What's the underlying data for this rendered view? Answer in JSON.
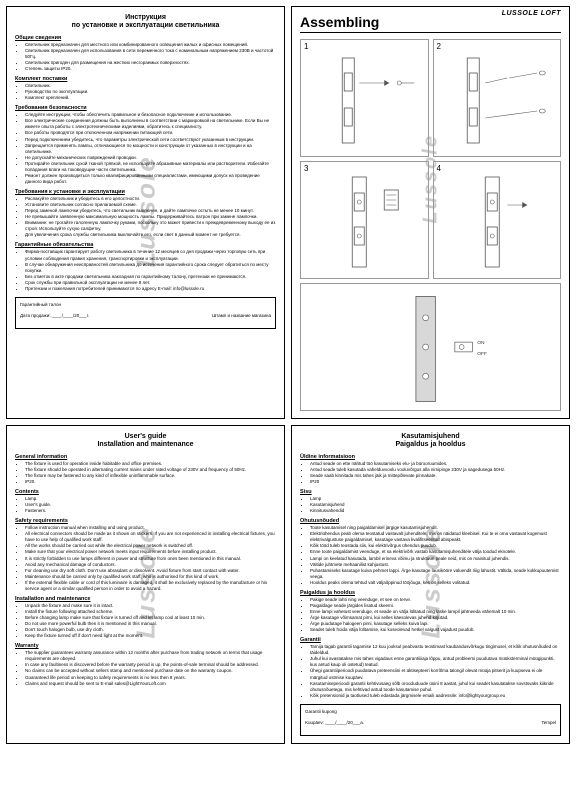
{
  "colors": {
    "border": "#000",
    "watermark": "#ccc",
    "text": "#000",
    "bg": "#fff"
  },
  "page1": {
    "title_l1": "Инструкция",
    "title_l2": "по установке и эксплуатации светильника",
    "s1_h": "Общие сведения",
    "s1_items": [
      "Светильник предназначен для местного или комбинированного освещения жилых и офисных помещений.",
      "Светильник предназначен для использования в сети переменного тока с номинальным напряжением 230В и частотой 50Гц.",
      "Светильник пригоден для размещения на жестких несгораемых поверхностях.",
      "Степень защиты IP20."
    ],
    "s2_h": "Комплект поставки",
    "s2_items": [
      "Светильник.",
      "Руководство по эксплуатации.",
      "Комплект креплений."
    ],
    "s3_h": "Требования безопасности",
    "s3_items": [
      "Следуйте инструкции, чтобы обеспечить правильное и безопасное подключение и использование.",
      "Все электрические соединения должны быть выполнены в соответствии с маркировкой на светильнике. Если Вы не имеете опыта работы с электротехническими изделиями, обратитесь к специалисту.",
      "Все работы проводятся при отключенном напряжении питающей сети.",
      "Перед подключением убедитесь, что параметры электрической сети соответствуют указанным в инструкции.",
      "Запрещается применять лампы, отличающиеся по мощности и конструкции от указанных в инструкции и на светильнике.",
      "Не допускайте механических повреждений проводки.",
      "Протирайте светильник сухой тканой тряпкой, не используйте абразивные материалы или растворители. Избегайте попадания влаги на токоведущие части светильника.",
      "Ремонт должен производиться только квалифицированными специалистами, имеющими допуск на проведение данного вида работ."
    ],
    "s4_h": "Требования к установке и эксплуатации",
    "s4_items": [
      "Распакуйте светильник и убедитесь в его целостности.",
      "Установите светильник согласно прилагаемой схеме.",
      "Перед заменой лампочки убедитесь, что светильник выключен, и дайте лампочке остыть не менее 10 минут.",
      "Не превышайте заявленную максимальную мощность лампы. Придерживайтесь патрон при замене лампочки.",
      "Внимание: не трогайте галогенную лампочку руками, поскольку это может привести к преждевременному выходу ее из строя. Используйте сухую салфетку.",
      "Для увеличения срока службы светильника выключайте его, если свет в данный момент не требуется."
    ],
    "s5_h": "Гарантийные обязательства",
    "s5_items": [
      "Фирма-поставщик гарантирует работу светильника в течение 12 месяцев со дня продажи через торговую сеть при условии соблюдения правил хранения, транспортировки и эксплуатации.",
      "В случае обнаружения неисправностей светильника до истечения гарантийного срока следует обратиться по месту покупки.",
      "Без отметок в акте продажи светильника накладная по гарантийному талону, претензии не принимаются.",
      "Срок службы при правильной эксплуатации не менее 8 лет.",
      "Претензии и пожелания потребителей принимаются по адресу E-mail: info@lussole.ru"
    ],
    "warranty_label": "Гарантийный талон",
    "date_label": "Дата продажи: ____/____/20___г.",
    "stamp_label": "Штамп и название магазина"
  },
  "page2": {
    "title": "Assembling",
    "brand": "LUSSOLE LOFT",
    "nums": [
      "1",
      "2",
      "3",
      "4"
    ]
  },
  "page3": {
    "title_l1": "User's guide",
    "title_l2": "Installation and maintenance",
    "s1_h": "General information",
    "s1_items": [
      "The fixture is used for operation inside habitable and office premises.",
      "The fixture should be operated in alternating current mains under rated voltage of 230V and frequency of 50Hz.",
      "The fixture may be fastened to any kind of inflexible uninflammable surface.",
      "IP20."
    ],
    "s2_h": "Contents",
    "s2_items": [
      "Lamp.",
      "User's guide.",
      "Fasteners."
    ],
    "s3_h": "Safety requirements",
    "s3_items": [
      "Follow instruction manual when installing and using product.",
      "All electrical connectors should be made as it shown on stickers. If you are not experienced in installing electrical fixtures, you have to use help of qualified work staff.",
      "All the works should be carried out while the electrical power network is switched off.",
      "Make sure that your electrical power network meets input requirements before installing product.",
      "It is strictly forbidden to use lamps different in power and structure from ones been mentioned in this manual.",
      "Avoid any mechanical damage of conductors.",
      "For cleaning use dry soft cloth. Don't use abrasdant or dissolvent. Avoid fixture from start contact with water.",
      "Maintenance should be carried only by qualified work staff, who is authorised for this kind of work.",
      "If the external flexible cable or cord of this luminaire is damaged, it shall be exclusively replaced by the manufacture or his service agent or a similar qualified person in order to avoid a hazard."
    ],
    "s4_h": "Installation and maintenance",
    "s4_items": [
      "Unpack the fixture and make sure it is intact.",
      "Install the fixture following attached scheme.",
      "Before changing lamp make sure that fixture is turned off and let lamp cool at least 10 min.",
      "Do not use more powerful bulb then it is mentioned in this manual.",
      "Don't touch halogen bulb, use dry cloth.",
      "Keep the fixture turned off if don't need light at the moment."
    ],
    "s5_h": "Warranty",
    "s5_items": [
      "The supplier guarantees warranty assurance within 12 months after purchase from trading network on terms that usage requirements are obeyed.",
      "In case any faultiness is discovered before the warranty period is up, the points-of-sale terminal should be addressed.",
      "No claims can be accepted without sellers stamp and mentioned purchase date on the warranty coupon.",
      "Guaranteed life period on keeping to safety requirements is no less then 8 years.",
      "Claims and request should be sent to E-mail sales@LightYourLoft.com"
    ]
  },
  "page4": {
    "title_l1": "Kasutamisjuhend",
    "title_l2": "Paigaldus ja hooldus",
    "s1_h": "Üldine informatsioon",
    "s1_items": [
      "Antud seade on ette nähtud töö kasutamiseks elu- ja bürooruumides.",
      "Antud seade tuleb kasutada vahelduvvoolu vooluvõrgus alla nimipinge 230V ja sagedusega 50Hz.",
      "Seade saab kinnitada mis tahes jäik ja mittepõlevate pinnakate.",
      "IP20"
    ],
    "s2_h": "Sisu",
    "s2_items": [
      "Lamp",
      "Kasutamisjuhend",
      "Kinnitusvahendid"
    ],
    "s3_h": "Ohutusnõuded",
    "s3_items": [
      "Toote kasutamisel ning paigaldamisel järgige kasutamisjuhendit.",
      "Elektriühendus peab olema teostatud vastavalt juhenditele, mis on näidatud kleebisel. Kui te ei oma vastavat kogemust elektrivalgustuse paigaldamisel, kasutage vastava kvalifitseeritud abispeakt.",
      "Kõik tööd tuleb teostada siis, kui elektrivõrgus ühendus puudub.",
      "Enne toote paigaldamist veenduge, et sa elektrivõrk vastab kasutamisjuhenditele välja toodud eknotele.",
      "Lampi on keelatud kasutada, lambil erineva võimu ja struktuuri peale neid, mis on mainitud juhendis.",
      "Vältide juhtmete mehaanilist kahjustust.",
      "Puhastamiseks kasutage kuiva pehmet lappi. Ärge kasutage lausikööre valuendit riiig lahustit. Vältida, seade kokkupuutemist veega.",
      "Hooldus peaks olema tehtud valt väljaõppinud tööjõuga, kes on selleks volitatud."
    ],
    "s4_h": "Paigaldus ja hooldus",
    "s4_items": [
      "Pakige seade lahti ning veenduge, et see on terve.",
      "Paigaldage seade järgides lisatud skeemi.",
      "Enne lampi vahetust veenduge, et seade on välja lülitatud ning laske lampil jahtneeda vähemalt 10 min.",
      "Ärge kasutage võimsamat pirni, kui selles käesolevas juhend kirjutad.",
      "Ärge puudutage halogeen pirni, kasutage selleks kuiva lapi.",
      "Seadet tuleb hoida välja lülitamise, kui koseolevad hetkel valgust vajadust puudub."
    ],
    "s5_h": "Garantii",
    "s5_items": [
      "Tarnija tagab garantii tagamise 12 kuu jooksul peabvastu teostimast kaubandusvõrkugu tingimusel, et kõik ohutusnõuded on täideldud.",
      "Juhul kui avastatakse mis tahes vigadaus enne garantiiiiaja lõppu, antud probleemi puudutava müüksterminal müügipunkti, kus antud kaup oli ostetud) teatud.",
      "Ühegi garantiiperioodi puudatava preteensiini et aktisepteeri korrõlma talongil olevat müüja pitserit ja kuupseva ei ole märgitud ostmise kuupäev.",
      "Kasutamiseperioodi garantii kehtivusaeg sõlb orooduduude üüini 8 aastat, juhul kui seadet kasutatakse sovstsvaks kiikride ohutusnõuetega, mis kehtivad antud toode kasutamise puhul.",
      "Kõik pretensionid ja taotlused tuleb edastada järgmisele emaili aadressile: info@lightyourgroup.eu"
    ],
    "warranty_label": "Garantii kupong",
    "date_label": "Kuupäev: ____/____/20___a.",
    "stamp_label": "Tempel"
  },
  "watermark": "Lussole"
}
